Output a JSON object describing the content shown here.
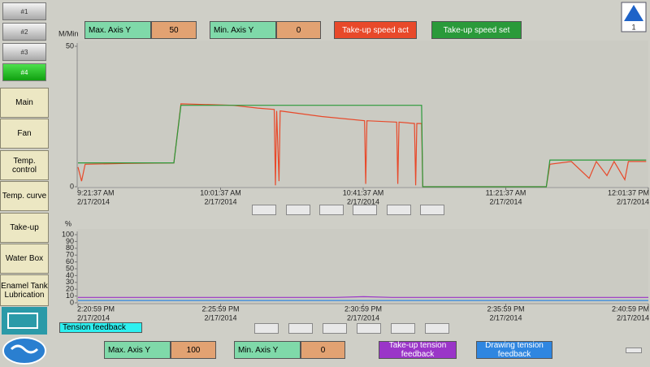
{
  "tabs": [
    "#1",
    "#2",
    "#3",
    "#4"
  ],
  "menu": [
    "Main",
    "Fan",
    "Temp. control",
    "Temp. curve",
    "Take-up",
    "Water Box",
    "Enamel Tank Lubrication"
  ],
  "page_indicator": "1",
  "selector": "Tension feedback",
  "axis_controls": {
    "max": "Max. Axis Y",
    "min": "Min. Axis Y"
  },
  "chart_data": [
    {
      "type": "line",
      "y_label": "M/Min",
      "x": [
        "2014-02-17T09:21:37",
        "2014-02-17T09:22:37",
        "2014-02-17T09:23:37",
        "2014-02-17T09:35:00",
        "2014-02-17T09:48:30",
        "2014-02-17T09:50:30",
        "2014-02-17T10:05:00",
        "2014-02-17T10:12:00",
        "2014-02-17T10:16:40",
        "2014-02-17T10:17:00",
        "2014-02-17T10:17:20",
        "2014-02-17T10:18:00",
        "2014-02-17T10:18:20",
        "2014-02-17T10:30:00",
        "2014-02-17T10:42:00",
        "2014-02-17T10:42:20",
        "2014-02-17T10:42:40",
        "2014-02-17T10:51:00",
        "2014-02-17T10:51:20",
        "2014-02-17T10:51:40",
        "2014-02-17T10:56:00",
        "2014-02-17T10:56:20",
        "2014-02-17T10:56:40",
        "2014-02-17T10:58:00",
        "2014-02-17T10:58:20",
        "2014-02-17T11:33:00",
        "2014-02-17T11:34:00",
        "2014-02-17T11:40:00",
        "2014-02-17T11:45:00",
        "2014-02-17T11:47:00",
        "2014-02-17T11:50:00",
        "2014-02-17T11:52:00",
        "2014-02-17T11:55:00",
        "2014-02-17T11:56:00",
        "2014-02-17T12:01:00"
      ],
      "series": [
        {
          "name": "Take-up speed act",
          "color": "#e8492a",
          "values": [
            7,
            2,
            8,
            8.3,
            8.5,
            29.5,
            29,
            28,
            27.5,
            0.5,
            27,
            2,
            27,
            25,
            23.5,
            1,
            23.5,
            23,
            1,
            23,
            22.5,
            0.5,
            22.5,
            22.5,
            0,
            0,
            8,
            9,
            3,
            9,
            4,
            9,
            2.5,
            9,
            9
          ]
        },
        {
          "name": "Take-up speed set",
          "color": "#2a9a3a",
          "values": [
            8.5,
            8.5,
            8.5,
            8.5,
            8.5,
            29,
            29,
            29,
            29,
            29,
            29,
            29,
            29,
            29,
            29,
            29,
            29,
            29,
            29,
            29,
            29,
            29,
            29,
            29,
            0,
            0,
            9.5,
            9.5,
            9.5,
            9.5,
            9.5,
            9.5,
            9.5,
            9.5,
            9.5
          ]
        }
      ],
      "xlim": [
        "2014-02-17T09:21:37",
        "2014-02-17T12:01:37"
      ],
      "xticks": [
        {
          "value": "2014-02-17T09:21:37",
          "label": [
            "9:21:37 AM",
            "2/17/2014"
          ]
        },
        {
          "value": "2014-02-17T10:01:37",
          "label": [
            "10:01:37 AM",
            "2/17/2014"
          ]
        },
        {
          "value": "2014-02-17T10:41:37",
          "label": [
            "10:41:37 AM",
            "2/17/2014"
          ]
        },
        {
          "value": "2014-02-17T11:21:37",
          "label": [
            "11:21:37 AM",
            "2/17/2014"
          ]
        },
        {
          "value": "2014-02-17T12:01:37",
          "label": [
            "12:01:37 PM",
            "2/17/2014"
          ]
        }
      ],
      "ylim": [
        0,
        50
      ],
      "yticks": [
        0,
        50
      ]
    },
    {
      "type": "line",
      "y_label": "%",
      "x": [
        "2014-02-17T14:20:59",
        "2014-02-17T14:30:00",
        "2014-02-17T14:31:00",
        "2014-02-17T14:32:00",
        "2014-02-17T14:40:59"
      ],
      "series": [
        {
          "name": "Take-up tension feedback",
          "color": "#9a35c8",
          "values": [
            8,
            8,
            9,
            8,
            8
          ]
        },
        {
          "name": "Drawing tension feedback",
          "color": "#2f86e0",
          "values": [
            3.5,
            3.5,
            3.5,
            3.5,
            3.5
          ]
        }
      ],
      "xlim": [
        "2014-02-17T14:20:59",
        "2014-02-17T14:40:59"
      ],
      "xticks": [
        {
          "value": "2014-02-17T14:20:59",
          "label": [
            "2:20:59 PM",
            "2/17/2014"
          ]
        },
        {
          "value": "2014-02-17T14:25:59",
          "label": [
            "2:25:59 PM",
            "2/17/2014"
          ]
        },
        {
          "value": "2014-02-17T14:30:59",
          "label": [
            "2:30:59 PM",
            "2/17/2014"
          ]
        },
        {
          "value": "2014-02-17T14:35:59",
          "label": [
            "2:35:59 PM",
            "2/17/2014"
          ]
        },
        {
          "value": "2014-02-17T14:40:59",
          "label": [
            "2:40:59 PM",
            "2/17/2014"
          ]
        }
      ],
      "ylim": [
        0,
        100
      ],
      "yticks": [
        0,
        10,
        20,
        30,
        40,
        50,
        60,
        70,
        80,
        90,
        100
      ]
    }
  ]
}
